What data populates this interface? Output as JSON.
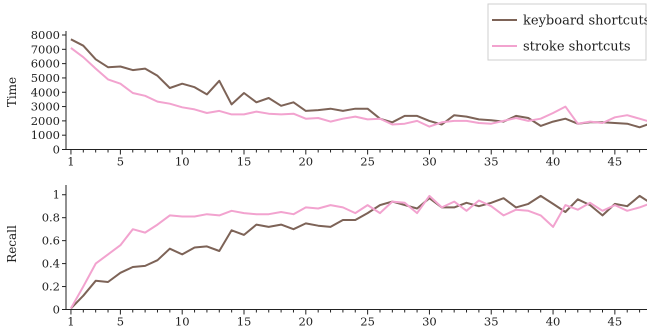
{
  "legend": {
    "entries": [
      {
        "label": "keyboard shortcuts",
        "color": "#7d6357"
      },
      {
        "label": "stroke shortcuts",
        "color": "#f2a3cf"
      }
    ]
  },
  "chart_data": [
    {
      "type": "line",
      "title": "",
      "xlabel": "",
      "ylabel": "Time",
      "xlim": [
        0.6,
        47.6
      ],
      "ylim": [
        0,
        8000
      ],
      "x_ticks": [
        1,
        5,
        10,
        15,
        20,
        25,
        30,
        35,
        40,
        45
      ],
      "y_ticks": [
        0,
        1000,
        2000,
        3000,
        4000,
        5000,
        6000,
        7000,
        8000
      ],
      "y_tick_labels": [
        "0",
        "1000",
        "2000",
        "3000",
        "4000",
        "5000",
        "6000",
        "7000",
        "8000"
      ],
      "x": [
        1,
        2,
        3,
        4,
        5,
        6,
        7,
        8,
        9,
        10,
        11,
        12,
        13,
        14,
        15,
        16,
        17,
        18,
        19,
        20,
        21,
        22,
        23,
        24,
        25,
        26,
        27,
        28,
        29,
        30,
        31,
        32,
        33,
        34,
        35,
        36,
        37,
        38,
        39,
        40,
        41,
        42,
        43,
        44,
        45,
        46,
        47,
        48
      ],
      "series": [
        {
          "name": "keyboard shortcuts",
          "color": "#7d6357",
          "values": [
            7700,
            7250,
            6300,
            5750,
            5800,
            5550,
            5650,
            5150,
            4300,
            4600,
            4350,
            3850,
            4800,
            3150,
            3950,
            3300,
            3600,
            3050,
            3300,
            2700,
            2750,
            2850,
            2700,
            2850,
            2850,
            2150,
            1900,
            2350,
            2350,
            2000,
            1750,
            2400,
            2300,
            2100,
            2050,
            1950,
            2350,
            2200,
            1650,
            1950,
            2150,
            1800,
            1900,
            1900,
            1850,
            1800,
            1550,
            1850
          ]
        },
        {
          "name": "stroke shortcuts",
          "color": "#f2a3cf",
          "values": [
            7100,
            6450,
            5650,
            4900,
            4600,
            3950,
            3750,
            3350,
            3200,
            2950,
            2800,
            2550,
            2700,
            2450,
            2450,
            2650,
            2500,
            2450,
            2500,
            2150,
            2200,
            1950,
            2150,
            2300,
            2100,
            2150,
            1750,
            1800,
            2000,
            1600,
            1900,
            2000,
            2000,
            1850,
            1800,
            2000,
            2200,
            2000,
            2150,
            2550,
            3000,
            1800,
            1950,
            1850,
            2250,
            2400,
            2150,
            1900
          ]
        }
      ],
      "grid": false,
      "legend_position": "top-right"
    },
    {
      "type": "line",
      "title": "",
      "xlabel": "",
      "ylabel": "Recall",
      "xlim": [
        0.6,
        47.6
      ],
      "ylim": [
        0,
        1.05
      ],
      "x_ticks": [
        1,
        5,
        10,
        15,
        20,
        25,
        30,
        35,
        40,
        45
      ],
      "y_ticks": [
        0,
        0.2,
        0.4,
        0.6,
        0.8,
        1
      ],
      "y_tick_labels": [
        "0",
        "0.2",
        "0.4",
        "0.6",
        "0.8",
        "1"
      ],
      "x": [
        1,
        2,
        3,
        4,
        5,
        6,
        7,
        8,
        9,
        10,
        11,
        12,
        13,
        14,
        15,
        16,
        17,
        18,
        19,
        20,
        21,
        22,
        23,
        24,
        25,
        26,
        27,
        28,
        29,
        30,
        31,
        32,
        33,
        34,
        35,
        36,
        37,
        38,
        39,
        40,
        41,
        42,
        43,
        44,
        45,
        46,
        47,
        48
      ],
      "series": [
        {
          "name": "keyboard shortcuts",
          "color": "#7d6357",
          "values": [
            0.01,
            0.12,
            0.25,
            0.24,
            0.32,
            0.37,
            0.38,
            0.43,
            0.53,
            0.48,
            0.54,
            0.55,
            0.51,
            0.69,
            0.65,
            0.74,
            0.72,
            0.74,
            0.7,
            0.75,
            0.73,
            0.72,
            0.78,
            0.78,
            0.84,
            0.91,
            0.94,
            0.91,
            0.88,
            0.97,
            0.89,
            0.89,
            0.93,
            0.9,
            0.93,
            0.97,
            0.89,
            0.92,
            0.99,
            0.92,
            0.85,
            0.96,
            0.91,
            0.82,
            0.92,
            0.9,
            0.99,
            0.92
          ]
        },
        {
          "name": "stroke shortcuts",
          "color": "#f2a3cf",
          "values": [
            0.01,
            0.2,
            0.4,
            0.48,
            0.56,
            0.7,
            0.67,
            0.74,
            0.82,
            0.81,
            0.81,
            0.83,
            0.82,
            0.86,
            0.84,
            0.83,
            0.83,
            0.85,
            0.83,
            0.89,
            0.88,
            0.91,
            0.89,
            0.84,
            0.91,
            0.84,
            0.94,
            0.93,
            0.84,
            0.99,
            0.89,
            0.94,
            0.86,
            0.95,
            0.9,
            0.82,
            0.87,
            0.86,
            0.82,
            0.72,
            0.91,
            0.87,
            0.93,
            0.86,
            0.91,
            0.86,
            0.89,
            0.93
          ]
        }
      ],
      "grid": false,
      "legend_position": "none"
    }
  ]
}
